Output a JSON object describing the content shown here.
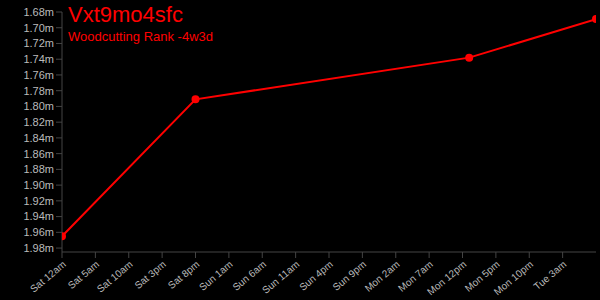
{
  "chart_data": {
    "type": "line",
    "title": "Vxt9mo4sfc",
    "subtitle": "Woodcutting Rank -4w3d",
    "x": [
      0,
      20,
      61,
      80
    ],
    "values": [
      1965000,
      1791000,
      1738000,
      1689000
    ],
    "color": "#ff0000",
    "marker": "circle",
    "grid": false,
    "xlim": [
      0,
      80
    ],
    "xticks": [
      {
        "value": 0,
        "label": "Sat 12am"
      },
      {
        "value": 5,
        "label": "Sat 5am"
      },
      {
        "value": 10,
        "label": "Sat 10am"
      },
      {
        "value": 15,
        "label": "Sat 3pm"
      },
      {
        "value": 20,
        "label": "Sat 8pm"
      },
      {
        "value": 25,
        "label": "Sun 1am"
      },
      {
        "value": 30,
        "label": "Sun 6am"
      },
      {
        "value": 35,
        "label": "Sun 11am"
      },
      {
        "value": 40,
        "label": "Sun 4pm"
      },
      {
        "value": 45,
        "label": "Sun 9pm"
      },
      {
        "value": 50,
        "label": "Mon 2am"
      },
      {
        "value": 55,
        "label": "Mon 7am"
      },
      {
        "value": 60,
        "label": "Mon 12pm"
      },
      {
        "value": 65,
        "label": "Mon 5pm"
      },
      {
        "value": 70,
        "label": "Mon 10pm"
      },
      {
        "value": 75,
        "label": "Tue 3am"
      }
    ],
    "ylim": [
      1985000,
      1680000
    ],
    "yticks": [
      {
        "value": 1680000,
        "label": "1.68m"
      },
      {
        "value": 1700000,
        "label": "1.70m"
      },
      {
        "value": 1720000,
        "label": "1.72m"
      },
      {
        "value": 1740000,
        "label": "1.74m"
      },
      {
        "value": 1760000,
        "label": "1.76m"
      },
      {
        "value": 1780000,
        "label": "1.78m"
      },
      {
        "value": 1800000,
        "label": "1.80m"
      },
      {
        "value": 1820000,
        "label": "1.82m"
      },
      {
        "value": 1840000,
        "label": "1.84m"
      },
      {
        "value": 1860000,
        "label": "1.86m"
      },
      {
        "value": 1880000,
        "label": "1.88m"
      },
      {
        "value": 1900000,
        "label": "1.90m"
      },
      {
        "value": 1920000,
        "label": "1.92m"
      },
      {
        "value": 1940000,
        "label": "1.94m"
      },
      {
        "value": 1960000,
        "label": "1.96m"
      },
      {
        "value": 1980000,
        "label": "1.98m"
      }
    ]
  }
}
